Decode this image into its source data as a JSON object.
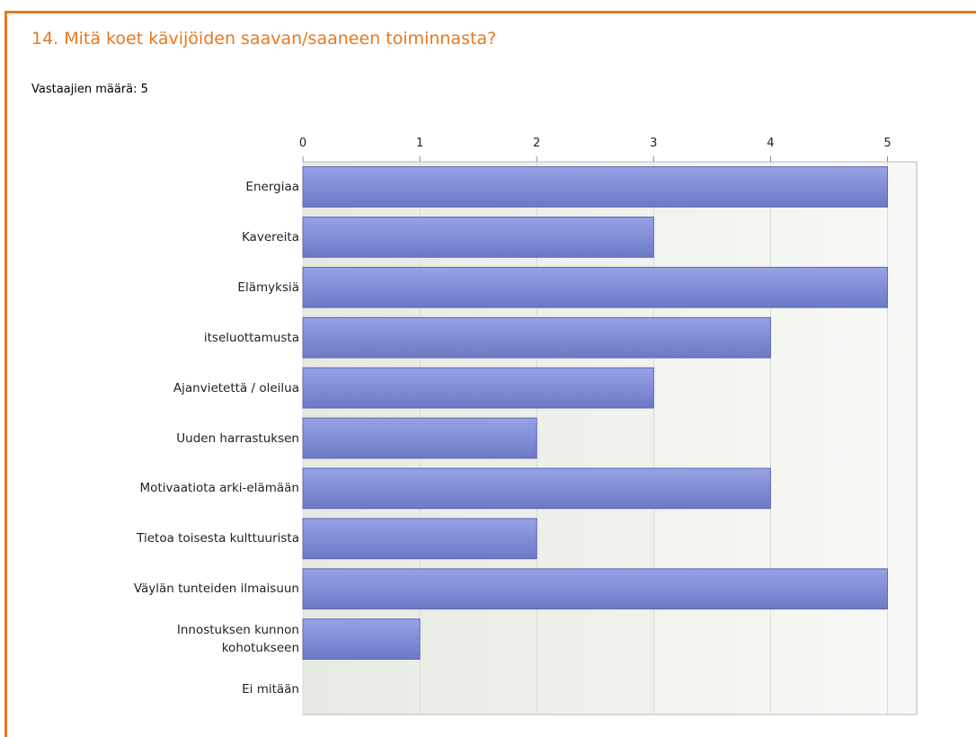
{
  "chart_data": {
    "type": "bar",
    "orientation": "horizontal",
    "title": "14. Mitä koet kävijöiden saavan/saaneen toiminnasta?",
    "subtitle": "Vastaajien määrä: 5",
    "categories": [
      "Energiaa",
      "Kavereita",
      "Elämyksiä",
      "itseluottamusta",
      "Ajanvietettä / oleilua",
      "Uuden harrastuksen",
      "Motivaatiota arki-elämään",
      "Tietoa toisesta kulttuurista",
      "Väylän tunteiden ilmaisuun",
      "Innostuksen kunnon\nkohotukseen",
      "Ei mitään"
    ],
    "values": [
      5,
      3,
      5,
      4,
      3,
      2,
      4,
      2,
      5,
      1,
      0
    ],
    "color": "#7d89d6",
    "xlim": [
      0,
      5.25
    ],
    "xticks": [
      0,
      1,
      2,
      3,
      4,
      5
    ],
    "grid": true
  }
}
